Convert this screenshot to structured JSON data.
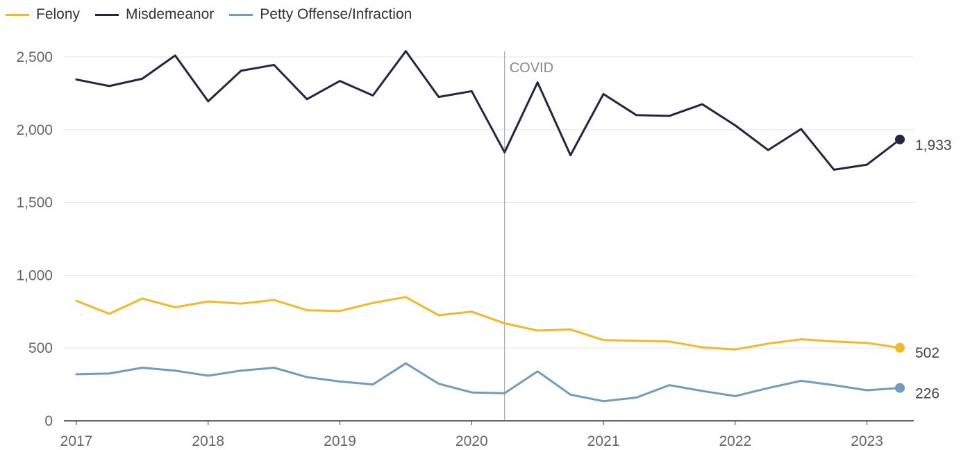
{
  "chart_data": {
    "type": "line",
    "title": "",
    "xlabel": "",
    "ylabel": "",
    "ylim": [
      0,
      2500
    ],
    "yticks": [
      "0",
      "500",
      "1,000",
      "1,500",
      "2,000",
      "2,500"
    ],
    "ytick_values": [
      0,
      500,
      1000,
      1500,
      2000,
      2500
    ],
    "x_tick_labels": [
      "2017",
      "2018",
      "2019",
      "2020",
      "2021",
      "2022",
      "2023"
    ],
    "x_tick_values": [
      2017,
      2018,
      2019,
      2020,
      2021,
      2022,
      2023
    ],
    "x": [
      2017.0,
      2017.25,
      2017.5,
      2017.75,
      2018.0,
      2018.25,
      2018.5,
      2018.75,
      2019.0,
      2019.25,
      2019.5,
      2019.75,
      2020.0,
      2020.25,
      2020.5,
      2020.75,
      2021.0,
      2021.25,
      2021.5,
      2021.75,
      2022.0,
      2022.25,
      2022.5,
      2022.75,
      2023.0,
      2023.25
    ],
    "series": [
      {
        "name": "Felony",
        "color": "#f2b827",
        "values": [
          825,
          735,
          840,
          780,
          820,
          805,
          830,
          760,
          755,
          810,
          850,
          725,
          750,
          670,
          620,
          628,
          555,
          550,
          545,
          505,
          490,
          530,
          560,
          545,
          535,
          502
        ],
        "end_label": "502"
      },
      {
        "name": "Misdemeanor",
        "color": "#242447",
        "values": [
          2345,
          2300,
          2350,
          2510,
          2195,
          2405,
          2445,
          2210,
          2335,
          2235,
          2540,
          2225,
          2265,
          1845,
          2325,
          1825,
          2245,
          2100,
          2095,
          2175,
          2030,
          1860,
          2005,
          1725,
          1760,
          1933
        ],
        "end_label": "1,933"
      },
      {
        "name": "Petty Offense/Infraction",
        "color": "#6f9bbf",
        "values": [
          320,
          325,
          365,
          345,
          310,
          345,
          365,
          300,
          270,
          250,
          395,
          255,
          195,
          190,
          340,
          180,
          135,
          160,
          245,
          205,
          170,
          225,
          275,
          245,
          210,
          226
        ],
        "end_label": "226"
      }
    ],
    "annotations": [
      {
        "label": "COVID",
        "x": 2020.25
      }
    ],
    "grid": true,
    "legend": "top-left"
  }
}
